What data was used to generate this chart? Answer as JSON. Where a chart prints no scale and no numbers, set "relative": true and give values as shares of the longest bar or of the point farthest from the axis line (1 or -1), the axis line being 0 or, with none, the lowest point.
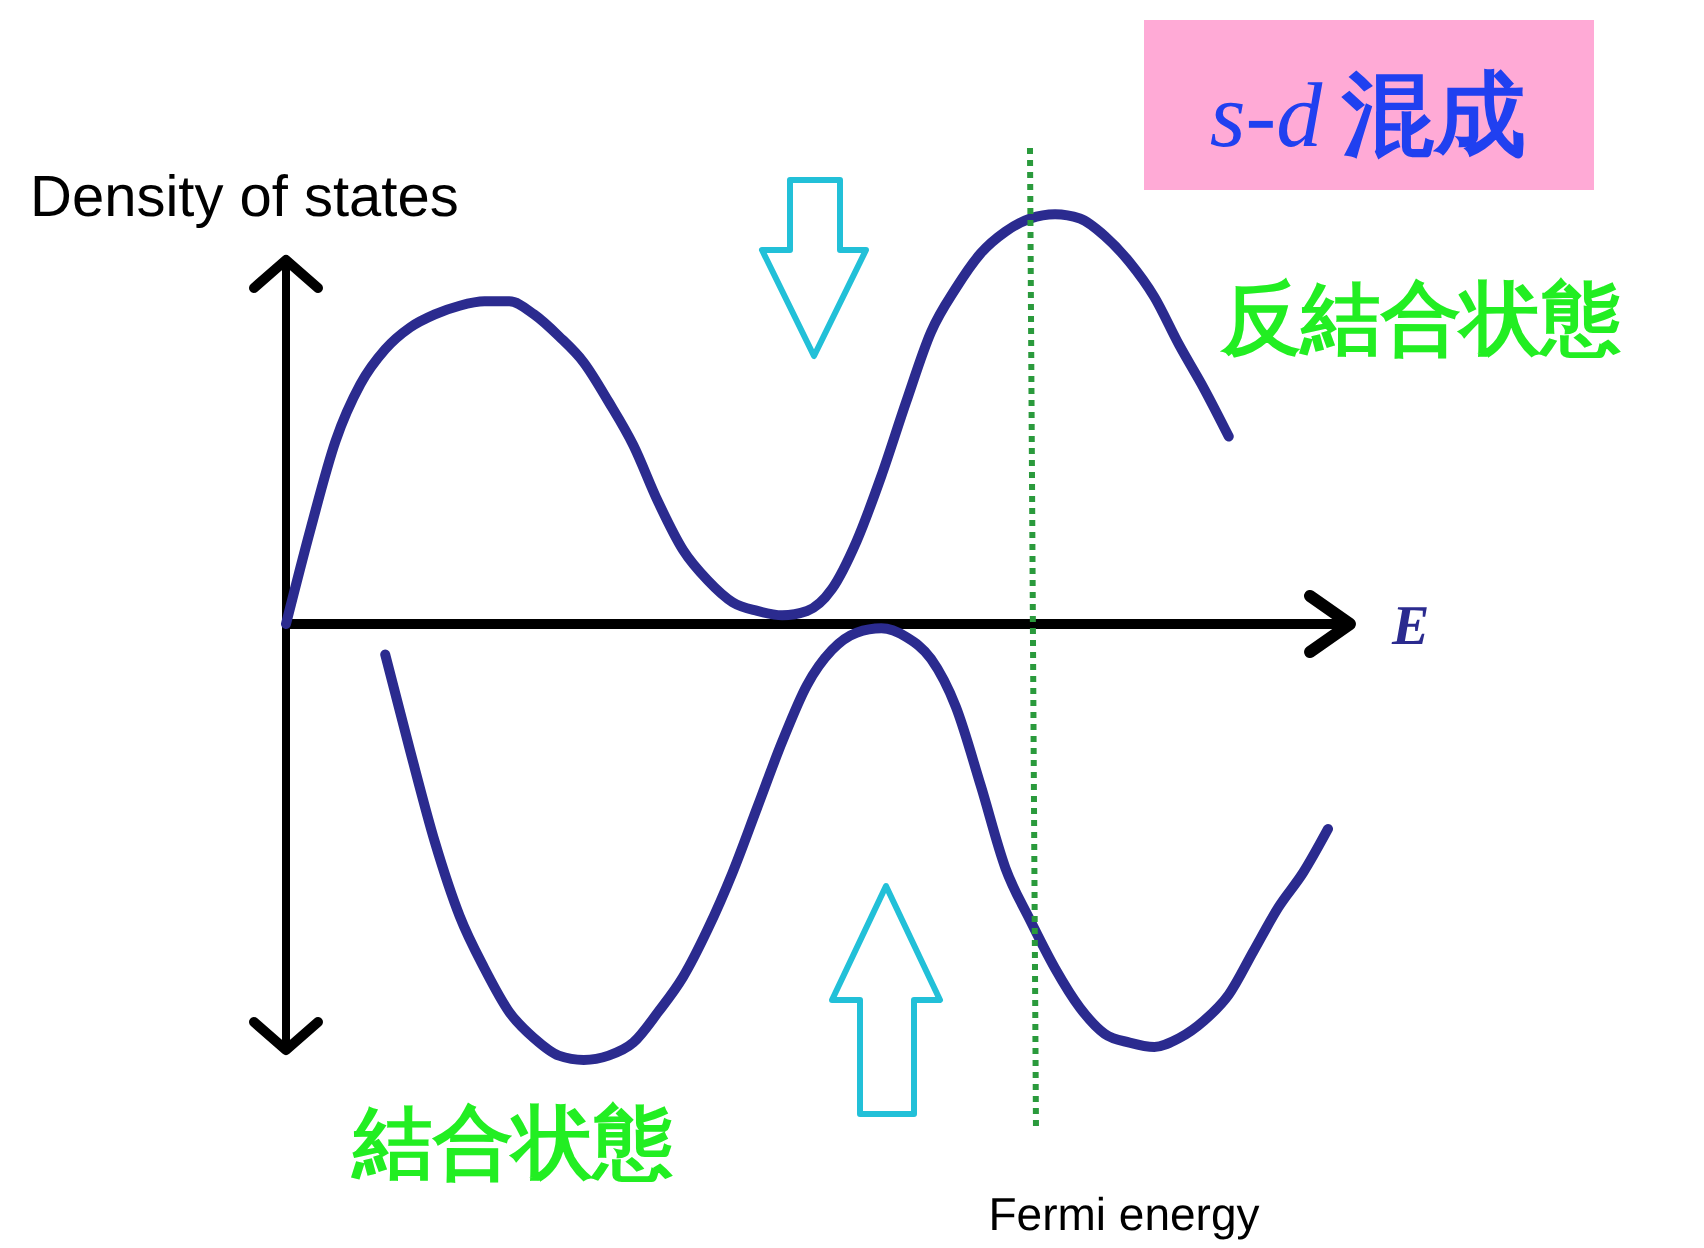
{
  "chart_data": {
    "type": "line",
    "title": "s-d 混成",
    "xlabel": "E",
    "ylabel": "Density of states",
    "relative": true,
    "categories": [
      null,
      null,
      null,
      null,
      null,
      null,
      null,
      null,
      null,
      null,
      null,
      null,
      null,
      null,
      null,
      null,
      null,
      null,
      null,
      null,
      null,
      null,
      null,
      null,
      null,
      null,
      null,
      null,
      null,
      null,
      null,
      null,
      null,
      null,
      null,
      null,
      null,
      null,
      null,
      null,
      null,
      null,
      null
    ],
    "series": [
      {
        "name": "反結合状態",
        "color": "#2b2b8f",
        "values": [
          0,
          0.22,
          0.42,
          0.55,
          0.63,
          0.68,
          0.71,
          0.73,
          0.74,
          0.74,
          0.71,
          0.66,
          0.6,
          0.51,
          0.41,
          0.28,
          0.17,
          0.1,
          0.05,
          0.03,
          0.02,
          0.03,
          0.08,
          0.19,
          0.34,
          0.51,
          0.67,
          0.77,
          0.85,
          0.9,
          0.93,
          0.94,
          0.93,
          0.89,
          0.83,
          0.75,
          0.64,
          0.54,
          0.43,
          null,
          null,
          null,
          null
        ]
      },
      {
        "name": "結合状態",
        "color": "#2b2b8f",
        "values": [
          null,
          null,
          null,
          null,
          -0.07,
          -0.29,
          -0.5,
          -0.67,
          -0.79,
          -0.89,
          -0.95,
          -0.99,
          -1,
          -0.99,
          -0.96,
          -0.89,
          -0.81,
          -0.7,
          -0.57,
          -0.42,
          -0.27,
          -0.14,
          -0.06,
          -0.02,
          -0.01,
          -0.03,
          -0.08,
          -0.19,
          -0.37,
          -0.56,
          -0.68,
          -0.79,
          -0.88,
          -0.94,
          -0.96,
          -0.97,
          -0.95,
          -0.91,
          -0.85,
          -0.75,
          -0.65,
          -0.57,
          -0.47
        ]
      }
    ],
    "annotations": [
      "Fermi energy"
    ]
  }
}
